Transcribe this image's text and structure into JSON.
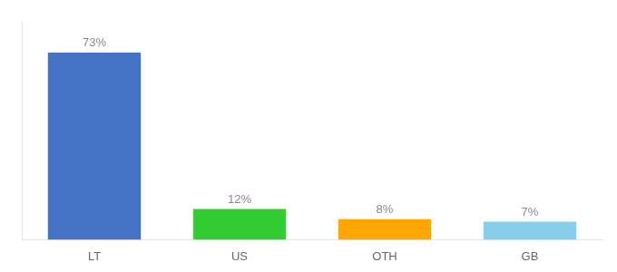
{
  "chart_data": {
    "type": "bar",
    "categories": [
      "LT",
      "US",
      "OTH",
      "GB"
    ],
    "values": [
      73,
      12,
      8,
      7
    ],
    "value_labels": [
      "73%",
      "12%",
      "8%",
      "7%"
    ],
    "colors": [
      "#4472C4",
      "#33CC33",
      "#FFA500",
      "#87CEEB"
    ],
    "ylim": [
      0,
      85
    ],
    "grid": false,
    "tick_labels": "x",
    "data_labels": true
  }
}
